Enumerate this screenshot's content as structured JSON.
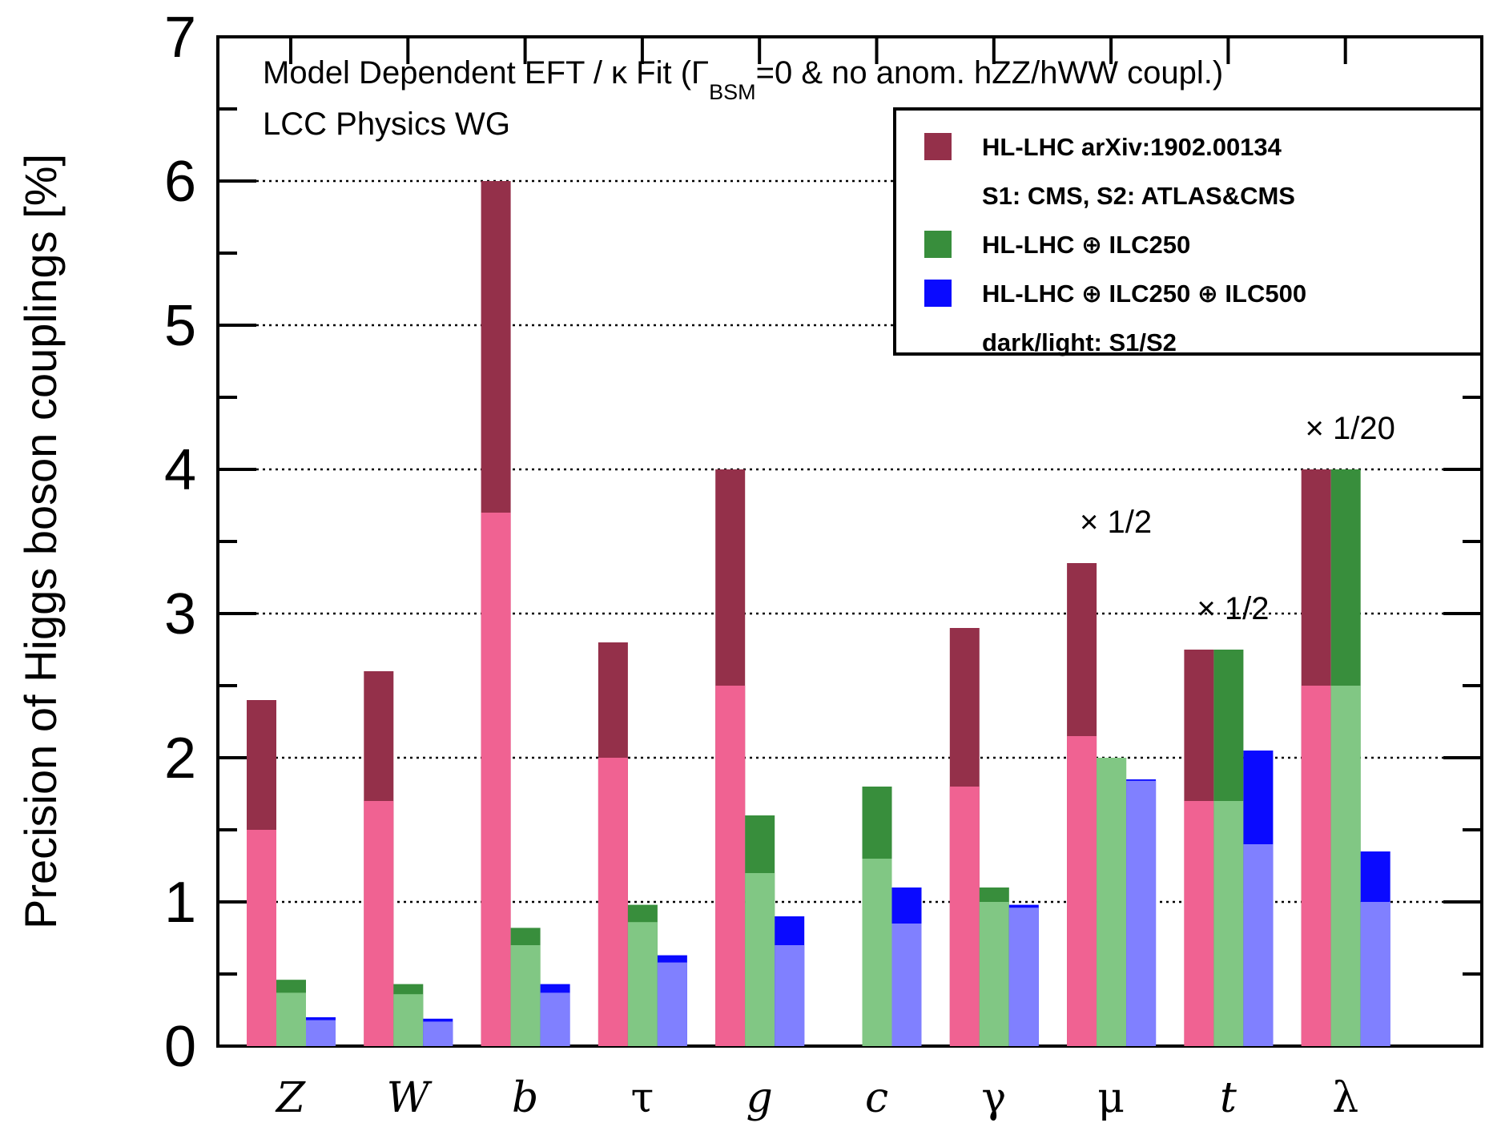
{
  "chart_data": {
    "type": "bar",
    "title": "Model Dependent EFT / κ Fit (Γ",
    "title_sub": "BSM",
    "title_rest": "=0 & no anom. hZZ/hWW coupl.)",
    "subtitle": "LCC Physics WG",
    "ylabel": "Precision of Higgs boson couplings [%]",
    "xlabel": "",
    "ylim": [
      0,
      7
    ],
    "yticks": [
      "0",
      "1",
      "2",
      "3",
      "4",
      "5",
      "6",
      "7"
    ],
    "grid": true,
    "categories": [
      "Z",
      "W",
      "b",
      "τ",
      "g",
      "c",
      "γ",
      "μ",
      "t",
      "λ"
    ],
    "category_italic": [
      true,
      true,
      true,
      false,
      true,
      true,
      false,
      false,
      true,
      false
    ],
    "series": [
      {
        "name": "HL-LHC",
        "s1": [
          2.4,
          2.6,
          6.0,
          2.8,
          4.0,
          null,
          2.9,
          3.35,
          2.75,
          4.0
        ],
        "s2": [
          1.5,
          1.7,
          3.7,
          2.0,
          2.5,
          null,
          1.8,
          2.15,
          1.7,
          2.5
        ],
        "color_dark": "#94304a",
        "color_light": "#f06292"
      },
      {
        "name": "HL-LHC ⊕ ILC250",
        "s1": [
          0.46,
          0.43,
          0.82,
          0.98,
          1.6,
          1.8,
          1.1,
          2.0,
          2.75,
          4.0
        ],
        "s2": [
          0.37,
          0.36,
          0.7,
          0.86,
          1.2,
          1.3,
          1.0,
          2.0,
          1.7,
          2.5
        ],
        "color_dark": "#388e3c",
        "color_light": "#81c784"
      },
      {
        "name": "HL-LHC ⊕ ILC250 ⊕ ILC500",
        "s1": [
          0.2,
          0.19,
          0.43,
          0.63,
          0.9,
          1.1,
          0.98,
          1.85,
          2.05,
          1.35
        ],
        "s2": [
          0.18,
          0.17,
          0.37,
          0.58,
          0.7,
          0.85,
          0.96,
          1.84,
          1.4,
          1.0
        ],
        "color_dark": "#0a0aff",
        "color_light": "#8080ff"
      }
    ],
    "annotations": [
      {
        "text": "× 1/2",
        "category": "μ"
      },
      {
        "text": "× 1/2",
        "category": "t"
      },
      {
        "text": "× 1/20",
        "category": "λ"
      }
    ],
    "legend": {
      "placement": "top-right",
      "entries": [
        {
          "label": "HL-LHC arXiv:1902.00134",
          "color": "#94304a"
        },
        {
          "label": "S1: CMS, S2: ATLAS&CMS",
          "color": ""
        },
        {
          "label": "HL-LHC ⊕ ILC250",
          "color": "#388e3c"
        },
        {
          "label": "HL-LHC ⊕ ILC250 ⊕ ILC500",
          "color": "#0a0aff"
        },
        {
          "label": "dark/light: S1/S2",
          "color": ""
        }
      ]
    }
  }
}
